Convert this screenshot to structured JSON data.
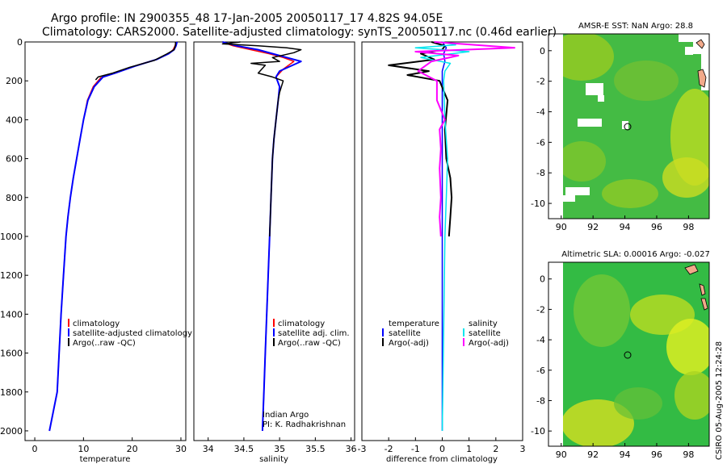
{
  "header": {
    "title_line1": "Argo profile: IN 2900355_48 17-Jan-2005 20050117_17 4.82S 94.05E",
    "title_line2": "Climatology: CARS2000. Satellite-adjusted climatology: synTS_20050117.nc (0.46d earlier)"
  },
  "side_label": "CSIRO 05-Aug-2005 12:24:28",
  "colors": {
    "climatology": "#ff0000",
    "satellite": "#0000ff",
    "argo": "#000000",
    "salinity_clim": "#ff00ff",
    "salinity_sat": "#00e5ee",
    "ocean": "#33bb44",
    "land_fill": "#f2a98a"
  },
  "chart_data": [
    {
      "type": "line",
      "name": "temperature-panel",
      "xlabel": "temperature",
      "ylabel": "",
      "xlim": [
        -2,
        31
      ],
      "ylim": [
        2050,
        0
      ],
      "xticks": [
        0,
        10,
        20,
        30
      ],
      "yticks": [
        0,
        200,
        400,
        600,
        800,
        1000,
        1200,
        1400,
        1600,
        1800,
        2000
      ],
      "legend": [
        "climatology",
        "satellite-adjusted climatology",
        "Argo(..raw -QC)"
      ],
      "legend_position": "lower-center",
      "series": [
        {
          "name": "climatology",
          "color": "#ff0000",
          "width": 1.5,
          "points": [
            [
              29,
              0
            ],
            [
              28.8,
              20
            ],
            [
              28.4,
              40
            ],
            [
              27.5,
              60
            ],
            [
              25,
              90
            ],
            [
              21,
              120
            ],
            [
              16.5,
              160
            ],
            [
              13.5,
              185
            ],
            [
              12,
              230
            ],
            [
              10.8,
              300
            ],
            [
              10,
              400
            ],
            [
              9.3,
              500
            ],
            [
              8.6,
              600
            ],
            [
              7.9,
              700
            ],
            [
              7.3,
              800
            ],
            [
              6.8,
              900
            ],
            [
              6.4,
              1000
            ],
            [
              5.9,
              1200
            ],
            [
              5.4,
              1400
            ],
            [
              5.0,
              1600
            ],
            [
              4.6,
              1800
            ],
            [
              3.0,
              2000
            ]
          ]
        },
        {
          "name": "satellite-adjusted climatology",
          "color": "#0000ff",
          "width": 2,
          "points": [
            [
              29.2,
              0
            ],
            [
              29,
              20
            ],
            [
              28.6,
              40
            ],
            [
              27.5,
              60
            ],
            [
              25,
              90
            ],
            [
              20.5,
              125
            ],
            [
              16.5,
              160
            ],
            [
              14,
              180
            ],
            [
              12.2,
              230
            ],
            [
              10.9,
              300
            ],
            [
              10,
              400
            ],
            [
              9.3,
              500
            ],
            [
              8.6,
              600
            ],
            [
              7.9,
              700
            ],
            [
              7.3,
              800
            ],
            [
              6.8,
              900
            ],
            [
              6.4,
              1000
            ],
            [
              5.9,
              1200
            ],
            [
              5.4,
              1400
            ],
            [
              5.0,
              1600
            ],
            [
              4.6,
              1800
            ],
            [
              3.0,
              2000
            ]
          ]
        },
        {
          "name": "Argo(..raw -QC)",
          "color": "#000000",
          "width": 1.5,
          "points": [
            [
              28.9,
              0
            ],
            [
              28.9,
              15
            ],
            [
              28.6,
              40
            ],
            [
              27.2,
              60
            ],
            [
              24.5,
              95
            ],
            [
              19.5,
              130
            ],
            [
              16,
              160
            ],
            [
              13,
              180
            ],
            [
              12.5,
              195
            ]
          ]
        }
      ]
    },
    {
      "type": "line",
      "name": "salinity-panel",
      "xlabel": "salinity",
      "xlim": [
        33.8,
        36.05
      ],
      "ylim": [
        2050,
        0
      ],
      "xticks": [
        34,
        34.5,
        35,
        35.5,
        36
      ],
      "legend": [
        "climatology",
        "satellite adj. clim.",
        "Argo(..raw -QC)"
      ],
      "legend_position": "lower-center",
      "annotations": [
        "Indian Argo",
        "PI: K. Radhakrishnan"
      ],
      "series": [
        {
          "name": "climatology",
          "color": "#ff0000",
          "width": 1.5,
          "points": [
            [
              34.2,
              0
            ],
            [
              34.35,
              20
            ],
            [
              34.6,
              40
            ],
            [
              34.85,
              60
            ],
            [
              35.05,
              80
            ],
            [
              35.2,
              100
            ],
            [
              35.05,
              140
            ],
            [
              34.95,
              180
            ],
            [
              35.0,
              230
            ],
            [
              34.98,
              300
            ],
            [
              34.95,
              400
            ],
            [
              34.92,
              500
            ],
            [
              34.9,
              600
            ],
            [
              34.88,
              800
            ],
            [
              34.86,
              1000
            ],
            [
              34.84,
              1200
            ],
            [
              34.82,
              1400
            ],
            [
              34.8,
              1600
            ],
            [
              34.78,
              1800
            ],
            [
              34.76,
              2000
            ]
          ]
        },
        {
          "name": "satellite adj. clim.",
          "color": "#0000ff",
          "width": 2,
          "points": [
            [
              34.2,
              0
            ],
            [
              34.4,
              20
            ],
            [
              34.7,
              40
            ],
            [
              34.9,
              60
            ],
            [
              35.1,
              80
            ],
            [
              35.3,
              100
            ],
            [
              35.0,
              150
            ],
            [
              34.95,
              180
            ],
            [
              35.0,
              230
            ],
            [
              34.98,
              300
            ],
            [
              34.95,
              400
            ],
            [
              34.92,
              500
            ],
            [
              34.9,
              600
            ],
            [
              34.88,
              800
            ],
            [
              34.86,
              1000
            ],
            [
              34.84,
              1200
            ],
            [
              34.82,
              1400
            ],
            [
              34.8,
              1600
            ],
            [
              34.78,
              1800
            ],
            [
              34.76,
              2000
            ]
          ]
        },
        {
          "name": "Argo(..raw -QC)",
          "color": "#000000",
          "width": 1.5,
          "points": [
            [
              34.45,
              0
            ],
            [
              34.2,
              10
            ],
            [
              34.7,
              20
            ],
            [
              35.1,
              30
            ],
            [
              35.3,
              40
            ],
            [
              35.2,
              55
            ],
            [
              34.9,
              80
            ],
            [
              35.0,
              100
            ],
            [
              34.6,
              110
            ],
            [
              34.8,
              120
            ],
            [
              34.75,
              140
            ],
            [
              34.7,
              160
            ],
            [
              34.9,
              180
            ],
            [
              35.05,
              200
            ],
            [
              35.0,
              260
            ],
            [
              34.98,
              300
            ],
            [
              34.95,
              400
            ],
            [
              34.92,
              500
            ],
            [
              34.9,
              600
            ],
            [
              34.88,
              800
            ],
            [
              34.86,
              1000
            ]
          ]
        }
      ]
    },
    {
      "type": "line",
      "name": "difference-panel",
      "xlabel": "difference from climatology",
      "xlim": [
        -3,
        3
      ],
      "ylim": [
        2050,
        0
      ],
      "xticks": [
        -3,
        -2,
        -1,
        0,
        1,
        2,
        3
      ],
      "legend_left_title": "temperature",
      "legend_left": [
        "satellite",
        "Argo(-adj)"
      ],
      "legend_right_title": "salinity",
      "legend_right": [
        "satellite",
        "Argo(-adj)"
      ],
      "legend_position": "lower-center",
      "series": [
        {
          "name": "temp satellite",
          "color": "#0000ff",
          "width": 1.5,
          "points": [
            [
              0,
              0
            ],
            [
              0.15,
              30
            ],
            [
              0.05,
              60
            ],
            [
              0.1,
              100
            ],
            [
              0,
              150
            ],
            [
              0,
              300
            ],
            [
              0,
              2000
            ]
          ]
        },
        {
          "name": "temp Argo(-adj)",
          "color": "#000000",
          "width": 2,
          "points": [
            [
              -0.4,
              0
            ],
            [
              0.1,
              20
            ],
            [
              0,
              40
            ],
            [
              -0.8,
              60
            ],
            [
              -0.3,
              90
            ],
            [
              -2.0,
              120
            ],
            [
              -0.5,
              150
            ],
            [
              -1.3,
              170
            ],
            [
              -0.1,
              200
            ],
            [
              0.2,
              300
            ],
            [
              0.1,
              450
            ],
            [
              0.15,
              600
            ],
            [
              0.3,
              700
            ],
            [
              0.35,
              800
            ],
            [
              0.3,
              900
            ],
            [
              0.25,
              1000
            ]
          ]
        },
        {
          "name": "sal satellite",
          "color": "#00e5ee",
          "width": 1.5,
          "points": [
            [
              0,
              0
            ],
            [
              0.5,
              15
            ],
            [
              -1.0,
              30
            ],
            [
              1.0,
              50
            ],
            [
              -0.8,
              80
            ],
            [
              0.3,
              110
            ],
            [
              0.1,
              150
            ],
            [
              0.05,
              200
            ],
            [
              0.1,
              400
            ],
            [
              0.2,
              600
            ],
            [
              0.15,
              800
            ],
            [
              0.1,
              1000
            ],
            [
              0.05,
              1500
            ],
            [
              0,
              2000
            ]
          ]
        },
        {
          "name": "sal Argo(-adj)",
          "color": "#ff00ff",
          "width": 2,
          "points": [
            [
              -0.3,
              0
            ],
            [
              2.7,
              30
            ],
            [
              -1.0,
              50
            ],
            [
              0.6,
              70
            ],
            [
              -0.4,
              100
            ],
            [
              -0.9,
              150
            ],
            [
              -0.2,
              200
            ],
            [
              -0.2,
              300
            ],
            [
              0.1,
              400
            ],
            [
              -0.1,
              450
            ],
            [
              -0.05,
              550
            ],
            [
              -0.1,
              650
            ],
            [
              -0.05,
              800
            ],
            [
              -0.1,
              900
            ],
            [
              -0.05,
              1000
            ]
          ]
        }
      ]
    },
    {
      "type": "heatmap",
      "name": "sst-map",
      "title": "AMSR-E SST: NaN Argo: 28.8",
      "xlim": [
        89.2,
        99.3
      ],
      "ylim": [
        -11,
        1.1
      ],
      "xticks": [
        90,
        92,
        94,
        96,
        98
      ],
      "yticks": [
        0,
        -2,
        -4,
        -6,
        -8,
        -10
      ],
      "marker": [
        94.05,
        -4.82
      ]
    },
    {
      "type": "heatmap",
      "name": "sla-map",
      "title": "Altimetric SLA: 0.00016 Argo: -0.027",
      "xlim": [
        89.2,
        99.3
      ],
      "ylim": [
        -11,
        1.1
      ],
      "xticks": [
        90,
        92,
        94,
        96,
        98
      ],
      "yticks": [
        0,
        -2,
        -4,
        -6,
        -8,
        -10
      ],
      "marker": [
        94.05,
        -4.82
      ]
    }
  ]
}
